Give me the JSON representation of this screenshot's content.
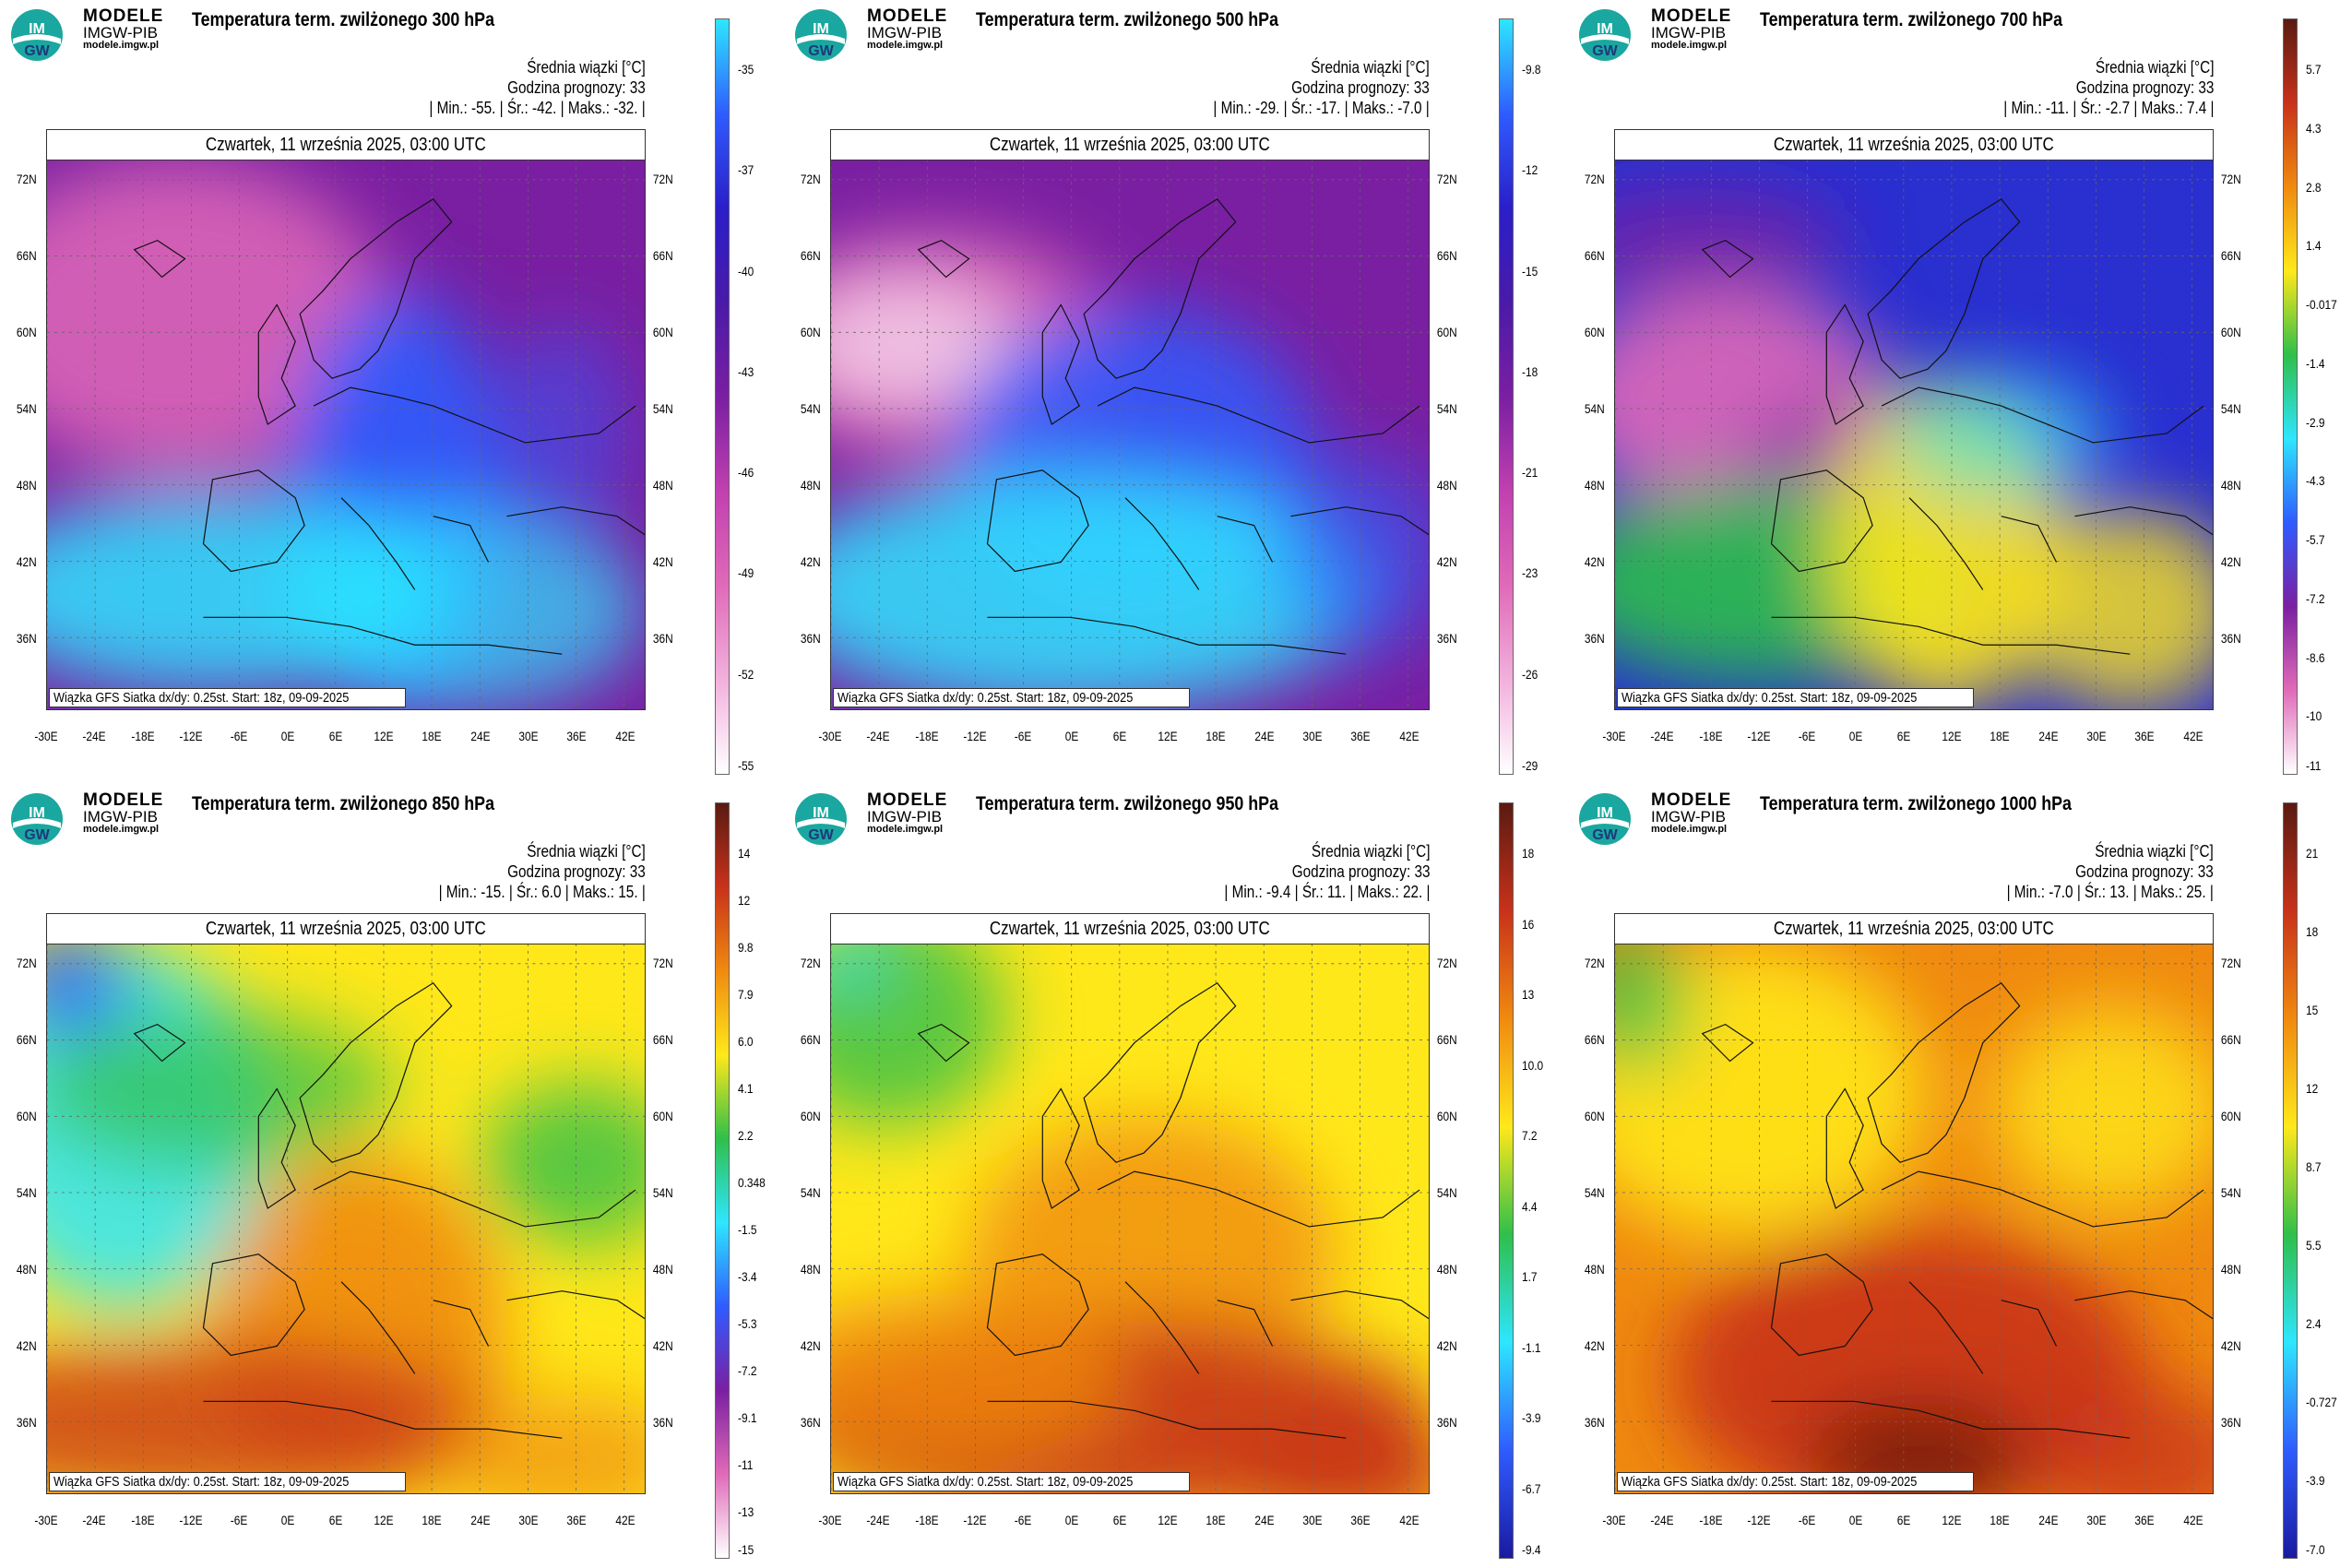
{
  "brand": {
    "line1": "MODELE",
    "line2": "IMGW-PIB",
    "line3": "modele.imgw.pl",
    "logo_top": "IM",
    "logo_bottom": "GW"
  },
  "common": {
    "mean_label": "Średnia wiązki [°C]",
    "forecast_hour": "Godzina prognozy: 33",
    "date": "Czwartek, 11 września 2025, 03:00 UTC",
    "source": "Wiązka GFS Siatka dx/dy: 0.25st. Start: 18z, 09-09-2025",
    "lat_labels": [
      "72N",
      "66N",
      "60N",
      "54N",
      "48N",
      "42N",
      "36N"
    ],
    "lon_labels": [
      "-30E",
      "-24E",
      "-18E",
      "-12E",
      "-6E",
      "0E",
      "6E",
      "12E",
      "18E",
      "24E",
      "30E",
      "36E",
      "42E"
    ]
  },
  "panels": [
    {
      "title": "Temperatura term. zwilżonego 300 hPa",
      "stats": "| Min.: -55. | Śr.: -42. | Maks.: -32. |",
      "colorbar": [
        "-35",
        "-37",
        "-40",
        "-43",
        "-46",
        "-49",
        "-52",
        "-55"
      ],
      "palette": "cold",
      "regime": "cold_upper"
    },
    {
      "title": "Temperatura term. zwilżonego 500 hPa",
      "stats": "| Min.: -29. | Śr.: -17. | Maks.: -7.0 |",
      "colorbar": [
        "-9.8",
        "-12",
        "-15",
        "-18",
        "-21",
        "-23",
        "-26",
        "-29"
      ],
      "palette": "cold",
      "regime": "cold_mid"
    },
    {
      "title": "Temperatura term. zwilżonego 700 hPa",
      "stats": "| Min.: -11. | Śr.: -2.7 | Maks.: 7.4 |",
      "colorbar": [
        "5.7",
        "4.3",
        "2.8",
        "1.4",
        "-0.017",
        "-1.4",
        "-2.9",
        "-4.3",
        "-5.7",
        "-7.2",
        "-8.6",
        "-10",
        "-11"
      ],
      "palette": "full",
      "regime": "mixed"
    },
    {
      "title": "Temperatura term. zwilżonego 850 hPa",
      "stats": "| Min.: -15. | Śr.: 6.0 | Maks.: 15. |",
      "colorbar": [
        "14",
        "12",
        "9.8",
        "7.9",
        "6.0",
        "4.1",
        "2.2",
        "0.348",
        "-1.5",
        "-3.4",
        "-5.3",
        "-7.2",
        "-9.1",
        "-11",
        "-13",
        "-15"
      ],
      "palette": "full",
      "regime": "warm850"
    },
    {
      "title": "Temperatura term. zwilżonego 950 hPa",
      "stats": "| Min.: -9.4 | Śr.: 11. | Maks.: 22. |",
      "colorbar": [
        "18",
        "16",
        "13",
        "10.0",
        "7.2",
        "4.4",
        "1.7",
        "-1.1",
        "-3.9",
        "-6.7",
        "-9.4"
      ],
      "palette": "warm",
      "regime": "warm950"
    },
    {
      "title": "Temperatura term. zwilżonego 1000 hPa",
      "stats": "| Min.: -7.0 | Śr.: 13. | Maks.: 25. |",
      "colorbar": [
        "21",
        "18",
        "15",
        "12",
        "8.7",
        "5.5",
        "2.4",
        "-0.727",
        "-3.9",
        "-7.0"
      ],
      "palette": "warm",
      "regime": "warm1000"
    }
  ],
  "colors": {
    "purple": "#7a1fa2",
    "pink": "#e06ab8",
    "blue": "#2f5cff",
    "cyan": "#2ee6ff",
    "green": "#2fbf4a",
    "yellow": "#ffe81a",
    "orange": "#f08a10",
    "red": "#c8321a"
  }
}
